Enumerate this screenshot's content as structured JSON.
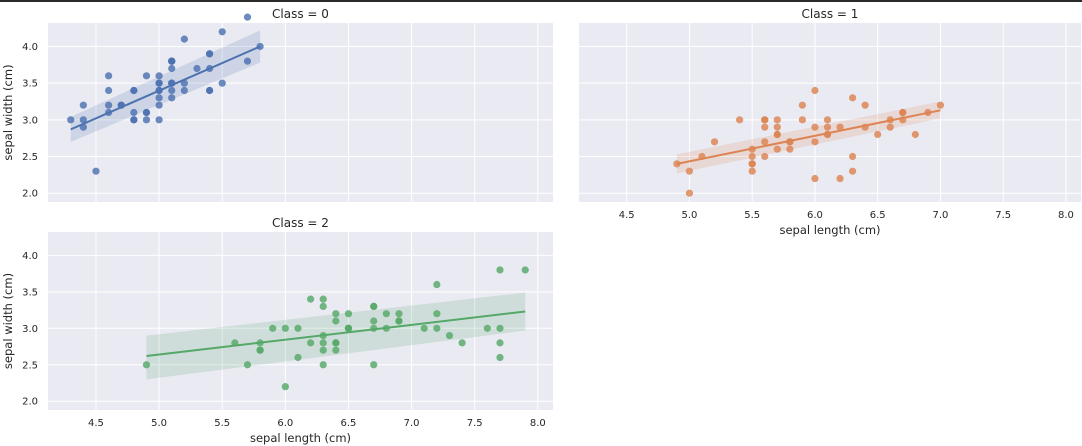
{
  "chart_data": [
    {
      "type": "scatter",
      "title": "Class = 0",
      "xlabel": "",
      "ylabel": "sepal width (cm)",
      "xlim": [
        4.12,
        8.12
      ],
      "ylim": [
        1.88,
        4.32
      ],
      "xticks": [
        "4.5",
        "5.0",
        "5.5",
        "6.0",
        "6.5",
        "7.0",
        "7.5",
        "8.0"
      ],
      "yticks": [
        "2.0",
        "2.5",
        "3.0",
        "3.5",
        "4.0"
      ],
      "show_xtick_labels": false,
      "show_ytick_labels": true,
      "color": "#4c72b0",
      "x": [
        5.1,
        4.9,
        4.7,
        4.6,
        5.0,
        5.4,
        4.6,
        5.0,
        4.4,
        4.9,
        5.4,
        4.8,
        4.8,
        4.3,
        5.8,
        5.7,
        5.4,
        5.1,
        5.7,
        5.1,
        5.4,
        5.1,
        4.6,
        5.1,
        4.8,
        5.0,
        5.0,
        5.2,
        5.2,
        4.7,
        4.8,
        5.4,
        5.2,
        5.5,
        4.9,
        5.0,
        5.5,
        4.9,
        4.4,
        5.1,
        5.0,
        4.5,
        4.4,
        5.0,
        5.1,
        4.8,
        5.1,
        4.6,
        5.3,
        5.0
      ],
      "y": [
        3.5,
        3.0,
        3.2,
        3.1,
        3.6,
        3.9,
        3.4,
        3.4,
        2.9,
        3.1,
        3.7,
        3.4,
        3.0,
        3.0,
        4.0,
        4.4,
        3.9,
        3.5,
        3.8,
        3.8,
        3.4,
        3.7,
        3.6,
        3.3,
        3.4,
        3.0,
        3.4,
        3.5,
        3.4,
        3.2,
        3.1,
        3.4,
        4.1,
        4.2,
        3.1,
        3.2,
        3.5,
        3.6,
        3.0,
        3.4,
        3.5,
        2.3,
        3.2,
        3.5,
        3.8,
        3.0,
        3.8,
        3.2,
        3.7,
        3.3
      ],
      "fit": {
        "x": [
          4.3,
          5.8
        ],
        "y": [
          2.87,
          4.0
        ],
        "ci_low": [
          2.7,
          3.78
        ],
        "ci_high": [
          3.04,
          4.22
        ]
      }
    },
    {
      "type": "scatter",
      "title": "Class = 1",
      "xlabel": "sepal length (cm)",
      "ylabel": "",
      "xlim": [
        4.12,
        8.12
      ],
      "ylim": [
        1.88,
        4.32
      ],
      "xticks": [
        "4.5",
        "5.0",
        "5.5",
        "6.0",
        "6.5",
        "7.0",
        "7.5",
        "8.0"
      ],
      "yticks": [
        "2.0",
        "2.5",
        "3.0",
        "3.5",
        "4.0"
      ],
      "show_xtick_labels": true,
      "show_ytick_labels": false,
      "color": "#dd8452",
      "x": [
        7.0,
        6.4,
        6.9,
        5.5,
        6.5,
        5.7,
        6.3,
        4.9,
        6.6,
        5.2,
        5.0,
        5.9,
        6.0,
        6.1,
        5.6,
        6.7,
        5.6,
        5.8,
        6.2,
        5.6,
        5.9,
        6.1,
        6.3,
        6.1,
        6.4,
        6.6,
        6.8,
        6.7,
        6.0,
        5.7,
        5.5,
        5.5,
        5.8,
        6.0,
        5.4,
        6.0,
        6.7,
        6.3,
        5.6,
        5.5,
        5.5,
        6.1,
        5.8,
        5.0,
        5.6,
        5.7,
        5.7,
        6.2,
        5.1,
        5.7
      ],
      "y": [
        3.2,
        3.2,
        3.1,
        2.3,
        2.8,
        2.8,
        3.3,
        2.4,
        2.9,
        2.7,
        2.0,
        3.0,
        2.2,
        2.9,
        2.9,
        3.1,
        3.0,
        2.7,
        2.2,
        2.5,
        3.2,
        2.8,
        2.5,
        2.8,
        2.9,
        3.0,
        2.8,
        3.0,
        2.9,
        2.6,
        2.4,
        2.4,
        2.7,
        2.7,
        3.0,
        3.4,
        3.1,
        2.3,
        3.0,
        2.5,
        2.6,
        3.0,
        2.6,
        2.3,
        2.7,
        3.0,
        2.9,
        2.9,
        2.5,
        2.8
      ],
      "fit": {
        "x": [
          4.9,
          7.0
        ],
        "y": [
          2.4,
          3.13
        ],
        "ci_low": [
          2.27,
          3.02
        ],
        "ci_high": [
          2.53,
          3.25
        ]
      }
    },
    {
      "type": "scatter",
      "title": "Class = 2",
      "xlabel": "sepal length (cm)",
      "ylabel": "sepal width (cm)",
      "xlim": [
        4.12,
        8.12
      ],
      "ylim": [
        1.88,
        4.32
      ],
      "xticks": [
        "4.5",
        "5.0",
        "5.5",
        "6.0",
        "6.5",
        "7.0",
        "7.5",
        "8.0"
      ],
      "yticks": [
        "2.0",
        "2.5",
        "3.0",
        "3.5",
        "4.0"
      ],
      "show_xtick_labels": true,
      "show_ytick_labels": true,
      "color": "#55a868",
      "x": [
        6.3,
        5.8,
        7.1,
        6.3,
        6.5,
        7.6,
        4.9,
        7.3,
        6.7,
        7.2,
        6.5,
        6.4,
        6.8,
        5.7,
        5.8,
        6.4,
        6.5,
        7.7,
        7.7,
        6.0,
        6.9,
        5.6,
        7.7,
        6.3,
        6.7,
        7.2,
        6.2,
        6.1,
        6.4,
        7.2,
        7.4,
        7.9,
        6.4,
        6.3,
        6.1,
        7.7,
        6.3,
        6.4,
        6.0,
        6.9,
        6.7,
        6.9,
        5.8,
        6.8,
        6.7,
        6.7,
        6.3,
        6.5,
        6.2,
        5.9
      ],
      "y": [
        3.3,
        2.7,
        3.0,
        2.9,
        3.0,
        3.0,
        2.5,
        2.9,
        2.5,
        3.6,
        3.2,
        2.7,
        3.0,
        2.5,
        2.8,
        3.2,
        3.0,
        3.8,
        2.6,
        2.2,
        3.2,
        2.8,
        2.8,
        2.7,
        3.3,
        3.2,
        2.8,
        3.0,
        2.8,
        3.0,
        2.8,
        3.8,
        2.8,
        2.8,
        2.6,
        3.0,
        3.4,
        3.1,
        3.0,
        3.1,
        3.1,
        3.1,
        2.7,
        3.2,
        3.3,
        3.0,
        2.5,
        3.0,
        3.4,
        3.0
      ],
      "fit": {
        "x": [
          4.9,
          7.9
        ],
        "y": [
          2.62,
          3.23
        ],
        "ci_low": [
          2.3,
          2.97
        ],
        "ci_high": [
          2.9,
          3.49
        ]
      }
    }
  ]
}
